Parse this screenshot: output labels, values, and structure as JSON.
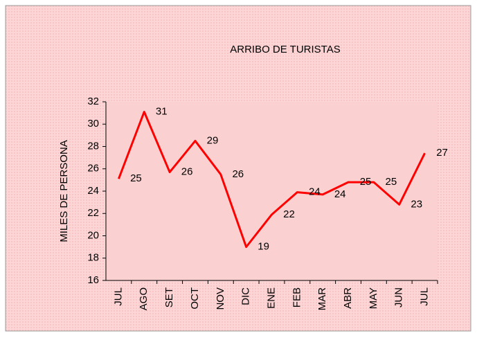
{
  "chart_data": {
    "type": "line",
    "title": "ARRIBO DE TURISTAS",
    "y_label": "MILES DE PERSONA",
    "categories": [
      "JUL",
      "AGO",
      "SET",
      "OCT",
      "NOV",
      "DIC",
      "ENE",
      "FEB",
      "MAR",
      "ABR",
      "MAY",
      "JUN",
      "JUL"
    ],
    "series": [
      {
        "name": "ARRIBO DE TURISTAS",
        "color": "#ff0000",
        "values": [
          25.1,
          31.1,
          25.7,
          28.5,
          25.5,
          19.0,
          21.9,
          23.9,
          23.7,
          24.8,
          24.8,
          22.8,
          27.4
        ],
        "value_labels": [
          "25",
          "31",
          "26",
          "29",
          "26",
          "19",
          "22",
          "24",
          "24",
          "25",
          "25",
          "23",
          "27"
        ]
      }
    ],
    "ylim": [
      16,
      32
    ],
    "yticks": [
      16,
      18,
      20,
      22,
      24,
      26,
      28,
      30,
      32
    ]
  }
}
